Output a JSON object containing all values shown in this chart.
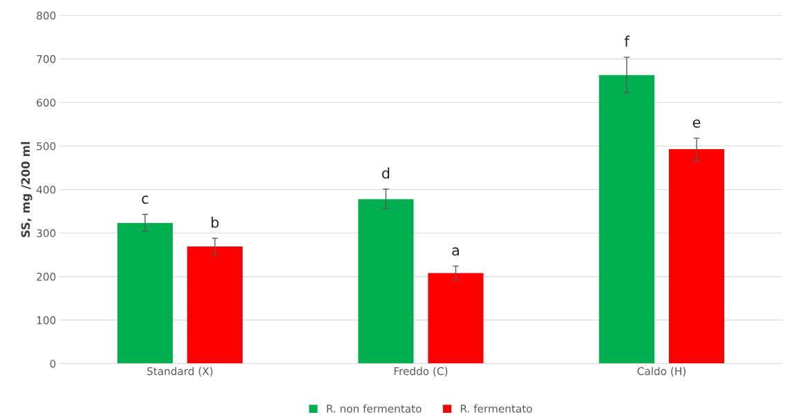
{
  "chart_data": {
    "type": "bar",
    "ylabel": "SS, mg /200 ml",
    "categories": [
      "Standard (X)",
      "Freddo (C)",
      "Caldo (H)"
    ],
    "series": [
      {
        "name": "R. non fermentato",
        "color": "#00b050",
        "values": [
          323,
          378,
          663
        ],
        "errors": [
          [
            304,
            343
          ],
          [
            356,
            401
          ],
          [
            623,
            704
          ]
        ]
      },
      {
        "name": "R. fermentato",
        "color": "#ff0000",
        "values": [
          269,
          208,
          493
        ],
        "errors": [
          [
            251,
            288
          ],
          [
            192,
            224
          ],
          [
            467,
            518
          ]
        ]
      }
    ],
    "annotations": [
      "c",
      "b",
      "d",
      "a",
      "f",
      "e"
    ],
    "ylim": [
      0,
      800
    ],
    "yticks": [
      0,
      100,
      200,
      300,
      400,
      500,
      600,
      700,
      800
    ],
    "grid": "y",
    "legend": "bottom"
  }
}
